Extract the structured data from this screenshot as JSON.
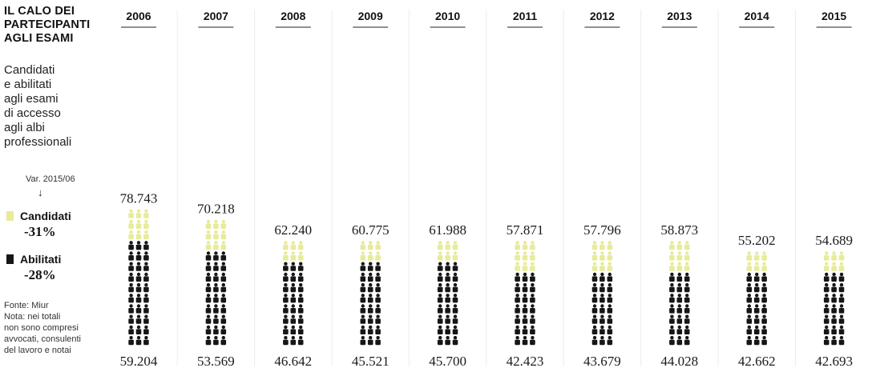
{
  "sidebar": {
    "title_lines": [
      "IL CALO DEI",
      "PARTECIPANTI",
      "AGLI ESAMI"
    ],
    "description_lines": [
      "Candidati",
      "e abilitati",
      "agli esami",
      "di accesso",
      "agli albi",
      "professionali"
    ],
    "variation_label": "Var. 2015/06",
    "variation_arrow": "↓",
    "legend": [
      {
        "label": "Candidati",
        "value": "-31%",
        "color": "#e8eb9a"
      },
      {
        "label": "Abilitati",
        "value": "-28%",
        "color": "#161616"
      }
    ],
    "note_lines": [
      "Fonte: Miur",
      "Nota: nei totali",
      "non sono compresi",
      "avvocati, consulenti",
      "del lavoro e notai"
    ]
  },
  "chart_data": {
    "type": "pictograph",
    "title": "IL CALO DEI PARTECIPANTI AGLI ESAMI",
    "categories": [
      "2006",
      "2007",
      "2008",
      "2009",
      "2010",
      "2011",
      "2012",
      "2013",
      "2014",
      "2015"
    ],
    "series": [
      {
        "name": "Candidati",
        "color": "#e8eb9a",
        "values": [
          78743,
          70218,
          62240,
          60775,
          61988,
          57871,
          57796,
          58873,
          55202,
          54689
        ],
        "labels": [
          "78.743",
          "70.218",
          "62.240",
          "60.775",
          "61.988",
          "57.871",
          "57.796",
          "58.873",
          "55.202",
          "54.689"
        ]
      },
      {
        "name": "Abilitati",
        "color": "#161616",
        "values": [
          59204,
          53569,
          46642,
          45521,
          45700,
          42423,
          43679,
          44028,
          42662,
          42693
        ],
        "labels": [
          "59.204",
          "53.569",
          "46.642",
          "45.521",
          "45.700",
          "42.423",
          "43.679",
          "44.028",
          "42.662",
          "42.693"
        ]
      }
    ],
    "legend_placement": "left"
  }
}
